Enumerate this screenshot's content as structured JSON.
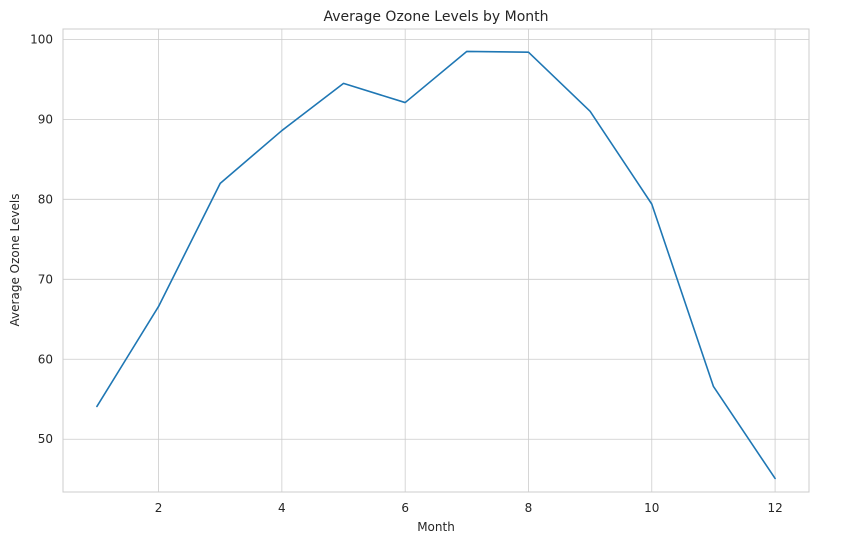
{
  "chart_data": {
    "type": "line",
    "title": "Average Ozone Levels by Month",
    "xlabel": "Month",
    "ylabel": "Average Ozone Levels",
    "x": [
      1,
      2,
      3,
      4,
      5,
      6,
      7,
      8,
      9,
      10,
      11,
      12
    ],
    "series": [
      {
        "values": [
          54.1,
          66.6,
          82.0,
          88.6,
          94.5,
          92.1,
          98.5,
          98.4,
          91.0,
          79.4,
          56.6,
          45.1
        ],
        "color": "#1f77b4"
      }
    ],
    "xticks": [
      2,
      4,
      6,
      8,
      10,
      12
    ],
    "yticks": [
      50,
      60,
      70,
      80,
      90,
      100
    ],
    "xlim": [
      0.45,
      12.55
    ],
    "ylim": [
      43.4,
      101.3
    ],
    "grid": true
  }
}
